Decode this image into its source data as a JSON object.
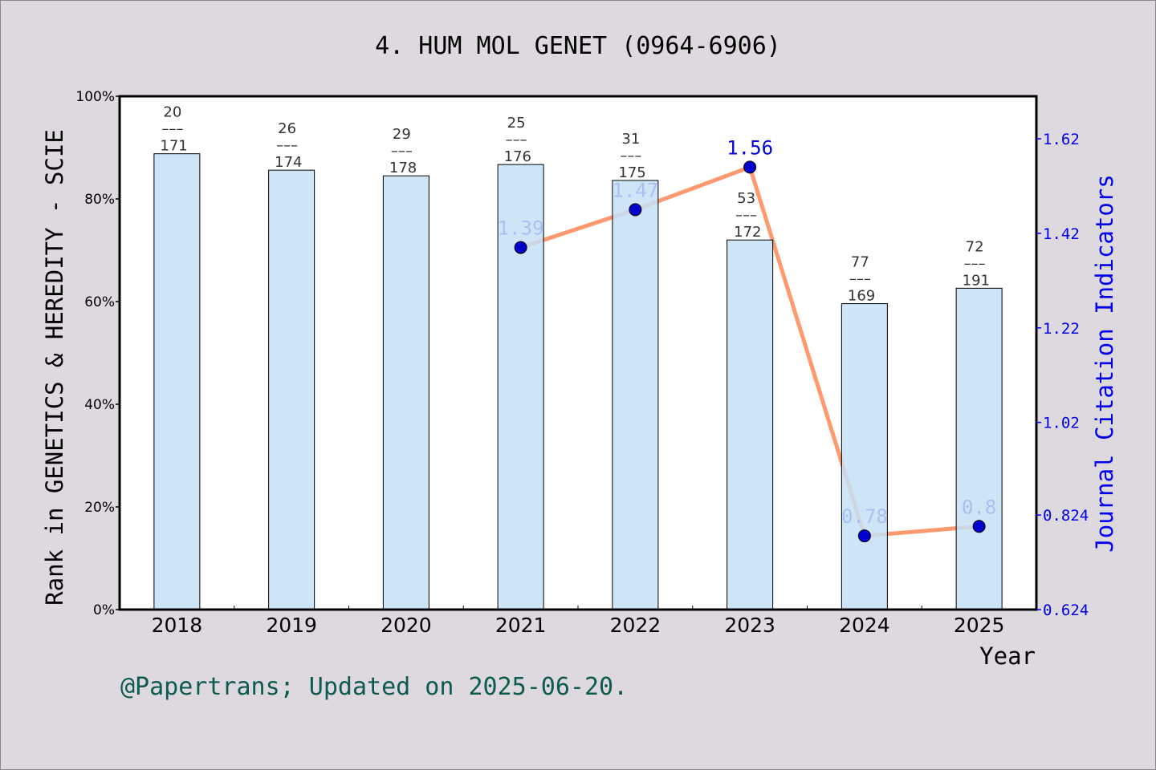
{
  "chart_data": {
    "type": "bar+line",
    "title": "4. HUM MOL GENET (0964-6906)",
    "xlabel": "Year",
    "ylabel_left": "Rank in GENETICS & HEREDITY - SCIE",
    "ylabel_right": "Journal Citation Indicators",
    "categories": [
      "2018",
      "2019",
      "2020",
      "2021",
      "2022",
      "2023",
      "2024",
      "2025"
    ],
    "left_ylim": [
      0,
      100
    ],
    "left_ticks": [
      "0%",
      "20%",
      "40%",
      "60%",
      "80%",
      "100%"
    ],
    "right_ylim": [
      0.624,
      1.71
    ],
    "right_ticks": [
      "0.624",
      "0.824",
      "1.02",
      "1.22",
      "1.42",
      "1.62"
    ],
    "bars": {
      "values_percent": [
        88.8,
        85.6,
        84.5,
        86.7,
        83.6,
        72.0,
        59.6,
        62.6
      ],
      "rank": [
        "20",
        "26",
        "29",
        "25",
        "31",
        "53",
        "77",
        "72"
      ],
      "total": [
        "171",
        "174",
        "178",
        "176",
        "175",
        "172",
        "169",
        "191"
      ],
      "color": "#c5e0f7"
    },
    "line": {
      "x": [
        "2021",
        "2022",
        "2023",
        "2024",
        "2025"
      ],
      "values": [
        1.39,
        1.47,
        1.56,
        0.78,
        0.8
      ],
      "labels": [
        "1.39",
        "1.47",
        "1.56",
        "0.78",
        "0.8"
      ],
      "line_color": "#ff9a70",
      "marker_color": "#0000cc"
    },
    "grid": false,
    "legend": "none"
  },
  "footer": "@Papertrans; Updated on 2025-06-20."
}
